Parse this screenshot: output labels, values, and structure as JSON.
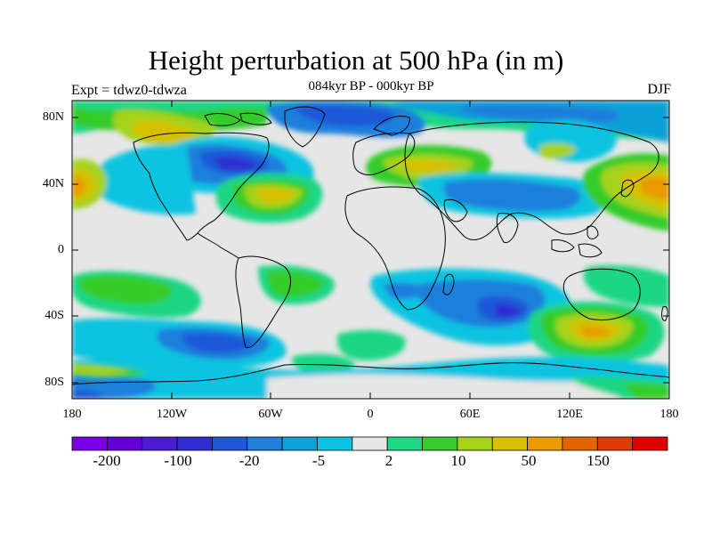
{
  "title": "Height perturbation at 500 hPa (in m)",
  "subtitle": "084kyr BP - 000kyr BP",
  "left_label": "Expt = tdwz0-tdwza",
  "right_label": "DJF",
  "lat_labels": [
    "80N",
    "40N",
    "0",
    "40S",
    "80S"
  ],
  "lon_labels": [
    "180",
    "120W",
    "60W",
    "0",
    "60E",
    "120E",
    "180"
  ],
  "colorbar": {
    "colors": [
      "#7a00e6",
      "#6200d8",
      "#4a1dd0",
      "#2f2dd0",
      "#1e58d8",
      "#1f7fdb",
      "#0fa0d8",
      "#0cc4e0",
      "#e6e6e6",
      "#1fd684",
      "#35cc2c",
      "#a6d21a",
      "#d6c000",
      "#e89a00",
      "#e46400",
      "#e03a0a",
      "#e00000"
    ],
    "labels": [
      "-200",
      "-100",
      "-20",
      "-5",
      "2",
      "10",
      "50",
      "150"
    ]
  },
  "colors": {
    "land_outline": "#000000",
    "ocean_background": "#e6e6e6"
  }
}
